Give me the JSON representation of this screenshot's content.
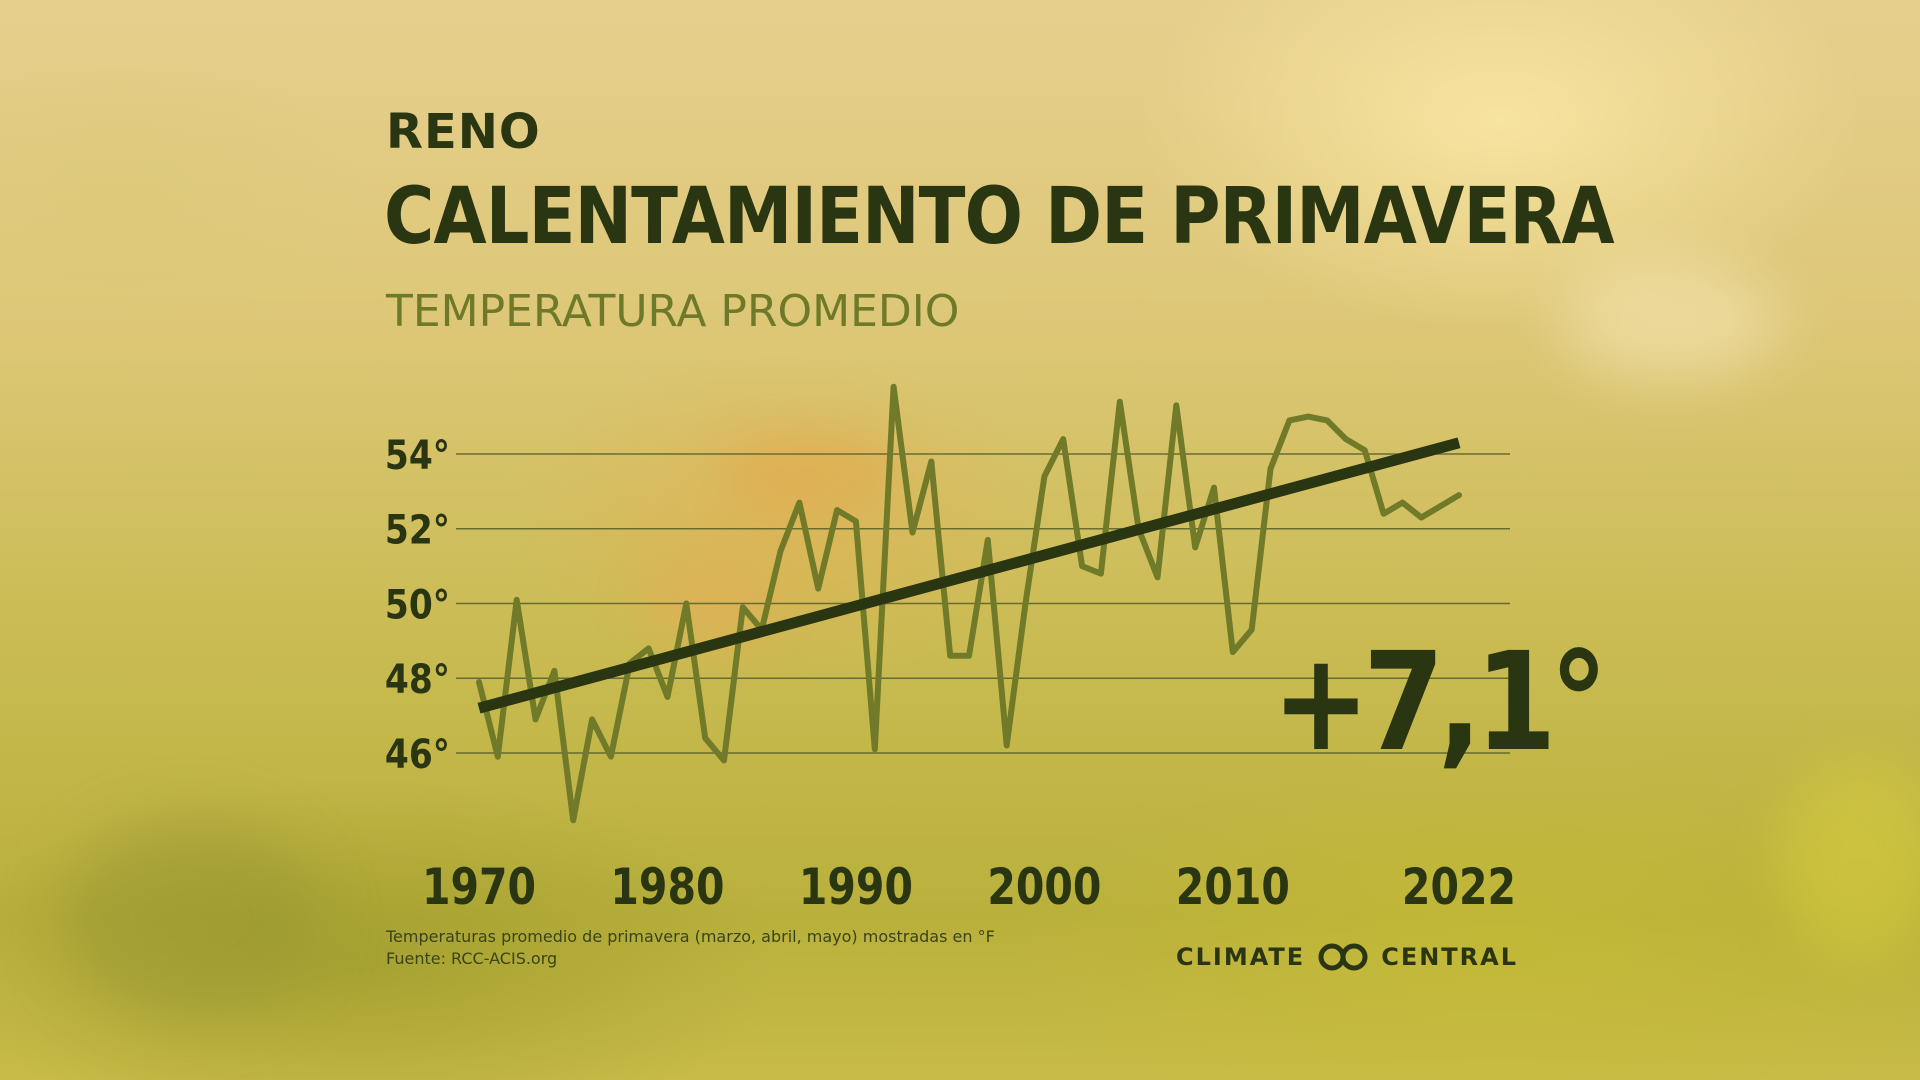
{
  "header": {
    "city": "RENO",
    "title": "CALENTAMIENTO DE PRIMAVERA",
    "subtitle": "TEMPERATURA PROMEDIO"
  },
  "change_label": "+7,1°",
  "footnote": {
    "line1": "Temperaturas promedio de primavera (marzo, abril, mayo) mostradas en °F",
    "line2": "Fuente: RCC-ACIS.org"
  },
  "logo": {
    "left": "CLIMATE",
    "right": "CENTRAL"
  },
  "colors": {
    "text_dark": "#2a3512",
    "series_line": "#707a28",
    "trend_line": "#2a3512",
    "grid": "#55602a",
    "subtitle": "#6e7a2a"
  },
  "chart_data": {
    "type": "line",
    "title": "CALENTAMIENTO DE PRIMAVERA",
    "xlabel": "",
    "ylabel": "",
    "x_ticks": [
      1970,
      1980,
      1990,
      2000,
      2010,
      2022
    ],
    "y_ticks": [
      46,
      48,
      50,
      52,
      54
    ],
    "y_tick_labels": [
      "46°",
      "48°",
      "50°",
      "52°",
      "54°"
    ],
    "xlim": [
      1970,
      2022
    ],
    "ylim": [
      44,
      56
    ],
    "grid": true,
    "series": [
      {
        "x": [
          1970,
          1971,
          1972,
          1973,
          1974,
          1975,
          1976,
          1977,
          1978,
          1979,
          1980,
          1981,
          1982,
          1983,
          1984,
          1985,
          1986,
          1987,
          1988,
          1989,
          1990,
          1991,
          1992,
          1993,
          1994,
          1995,
          1996,
          1997,
          1998,
          1999,
          2000,
          2001,
          2002,
          2003,
          2004,
          2005,
          2006,
          2007,
          2008,
          2009,
          2010,
          2011,
          2012,
          2013,
          2014,
          2015,
          2016,
          2017,
          2018,
          2019,
          2020,
          2021,
          2022
        ],
        "y": [
          47.9,
          45.9,
          50.1,
          46.9,
          48.2,
          44.2,
          46.9,
          45.9,
          48.4,
          48.8,
          47.5,
          50.0,
          46.4,
          45.8,
          49.9,
          49.3,
          51.4,
          52.7,
          50.4,
          52.5,
          52.2,
          46.1,
          55.8,
          51.9,
          53.8,
          48.6,
          48.6,
          51.7,
          46.2,
          50.0,
          53.4,
          54.4,
          51.0,
          50.8,
          55.4,
          52.0,
          50.7,
          55.3,
          51.5,
          53.1,
          48.7,
          49.3,
          53.6,
          54.9,
          55.0,
          54.9,
          54.4,
          54.1,
          52.4,
          52.7,
          52.3,
          52.6,
          52.9
        ]
      }
    ],
    "trend": {
      "x": [
        1970,
        2022
      ],
      "y": [
        47.2,
        54.3
      ]
    },
    "change": "+7,1°"
  }
}
